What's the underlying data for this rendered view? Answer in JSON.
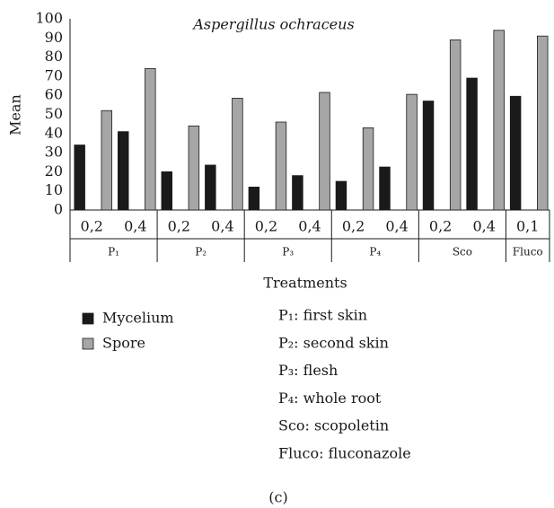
{
  "chart_data": {
    "type": "bar",
    "title": "Aspergillus ochraceus",
    "y_label": "Mean",
    "x_label": "Treatments",
    "groups": [
      {
        "name": "P₁",
        "categories": [
          "0,2",
          "0,4"
        ]
      },
      {
        "name": "P₂",
        "categories": [
          "0,2",
          "0,4"
        ]
      },
      {
        "name": "P₃",
        "categories": [
          "0,2",
          "0,4"
        ]
      },
      {
        "name": "P₄",
        "categories": [
          "0,2",
          "0,4"
        ]
      },
      {
        "name": "Sco",
        "categories": [
          "0,2",
          "0,4"
        ]
      },
      {
        "name": "Fluco",
        "categories": [
          "0,1"
        ]
      }
    ],
    "series": [
      {
        "name": "Mycelium",
        "color": "#1a1a1a",
        "values": [
          34,
          41,
          20,
          23.5,
          12,
          18,
          15,
          22.5,
          57,
          69,
          59.5
        ]
      },
      {
        "name": "Spore",
        "color": "#a6a6a6",
        "values": [
          52,
          74,
          44,
          58.5,
          46,
          61.5,
          43,
          60.5,
          89,
          94,
          91
        ]
      }
    ],
    "ylim": [
      0,
      100
    ],
    "yticks": [
      0,
      10,
      20,
      30,
      40,
      50,
      60,
      70,
      80,
      90,
      100
    ],
    "grid": false,
    "notes": [
      "P₁: first skin",
      "P₂: second skin",
      "P₃: flesh",
      "P₄: whole root",
      "Sco: scopoletin",
      "Fluco: fluconazole"
    ],
    "panel_label": "(c)"
  }
}
